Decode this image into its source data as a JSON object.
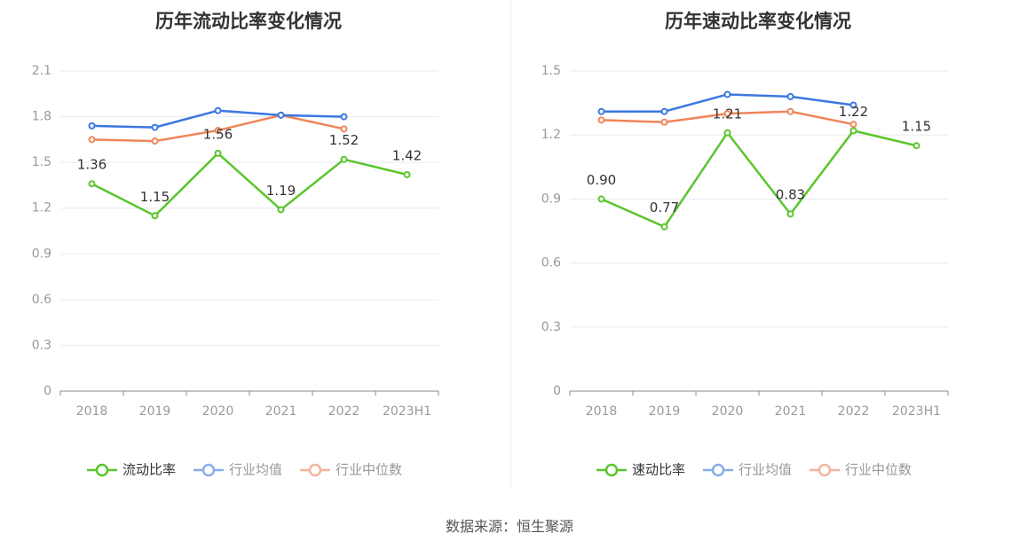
{
  "colors": {
    "green": "#5ac62c",
    "blue": "#3b78e0",
    "orange": "#f0855a",
    "grid": "#e6e9f5",
    "axis": "#888888"
  },
  "source_text": "数据来源：恒生聚源",
  "chart_data": [
    {
      "type": "line",
      "title": "历年流动比率变化情况",
      "categories": [
        "2018",
        "2019",
        "2020",
        "2021",
        "2022",
        "2023H1"
      ],
      "ylim": [
        0,
        2.1
      ],
      "yticks": [
        "0",
        "0.3",
        "0.6",
        "0.9",
        "1.2",
        "1.5",
        "1.8",
        "2.1"
      ],
      "legend": "bottom",
      "grid": true,
      "series": [
        {
          "name": "流动比率",
          "color": "green",
          "values": [
            1.36,
            1.15,
            1.56,
            1.19,
            1.52,
            1.42
          ],
          "labels": [
            "1.36",
            "1.15",
            "1.56",
            "1.19",
            "1.52",
            "1.42"
          ]
        },
        {
          "name": "行业均值",
          "color": "blue",
          "values": [
            1.74,
            1.73,
            1.84,
            1.81,
            1.8,
            null
          ]
        },
        {
          "name": "行业中位数",
          "color": "orange",
          "values": [
            1.65,
            1.64,
            1.71,
            1.81,
            1.72,
            null
          ]
        }
      ]
    },
    {
      "type": "line",
      "title": "历年速动比率变化情况",
      "categories": [
        "2018",
        "2019",
        "2020",
        "2021",
        "2022",
        "2023H1"
      ],
      "ylim": [
        0,
        1.5
      ],
      "yticks": [
        "0",
        "0.3",
        "0.6",
        "0.9",
        "1.2",
        "1.5"
      ],
      "legend": "bottom",
      "grid": true,
      "series": [
        {
          "name": "速动比率",
          "color": "green",
          "values": [
            0.9,
            0.77,
            1.21,
            0.83,
            1.22,
            1.15
          ],
          "labels": [
            "0.90",
            "0.77",
            "1.21",
            "0.83",
            "1.22",
            "1.15"
          ]
        },
        {
          "name": "行业均值",
          "color": "blue",
          "values": [
            1.31,
            1.31,
            1.39,
            1.38,
            1.34,
            null
          ]
        },
        {
          "name": "行业中位数",
          "color": "orange",
          "values": [
            1.27,
            1.26,
            1.3,
            1.31,
            1.25,
            null
          ]
        }
      ]
    }
  ]
}
